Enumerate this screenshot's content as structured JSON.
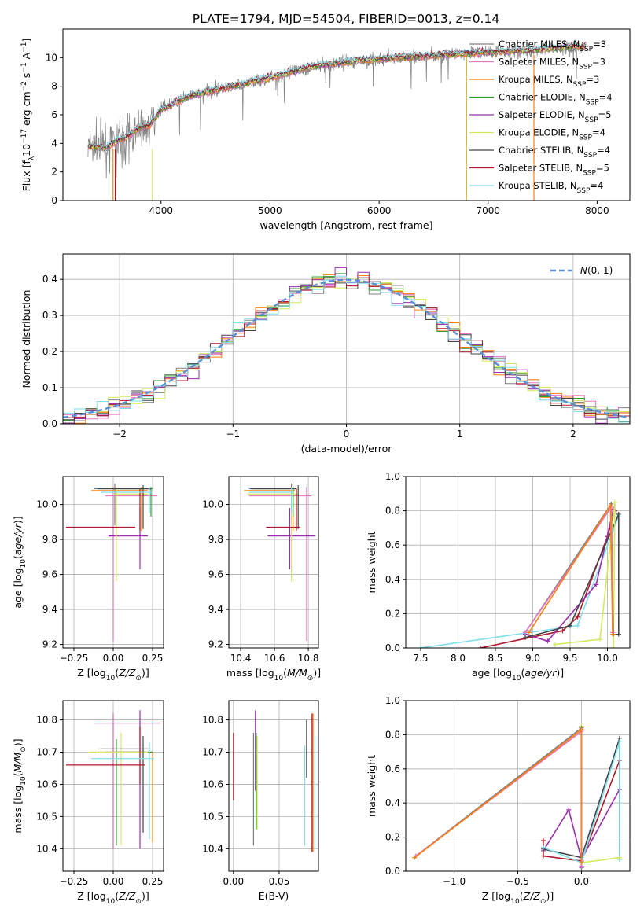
{
  "figure_title": "PLATE=1794, MJD=54504, FIBERID=0013, z=0.14",
  "colors": {
    "Chabrier MILES": "#808080",
    "Salpeter MILES": "#e377c2",
    "Kroupa MILES": "#ff7f0e",
    "Chabrier ELODIE": "#2ca02c",
    "Salpeter ELODIE": "#9b2fae",
    "Kroupa ELODIE": "#d6e95e",
    "Chabrier STELIB": "#444444",
    "Salpeter STELIB": "#b2182b",
    "Kroupa STELIB": "#80deea",
    "normal": "#5b8fd6"
  },
  "chart_data": [
    {
      "id": "spectrum",
      "type": "line",
      "xlabel": "wavelength [Angstrom, rest frame]",
      "ylabel": "Flux [f_λ 10^-17 erg cm^-2 s^-1 A^-1]",
      "xlim": [
        3100,
        8300
      ],
      "ylim": [
        0,
        12
      ],
      "xticks": [
        4000,
        5000,
        6000,
        7000,
        8000
      ],
      "yticks": [
        0,
        2,
        4,
        6,
        8,
        10
      ],
      "grid": false,
      "legend_position": "top-right",
      "data_anchors": {
        "x": [
          3330,
          3500,
          3600,
          3700,
          3800,
          3900,
          4000,
          4300,
          4600,
          5000,
          5400,
          5800,
          6200,
          6600,
          7000,
          7400,
          7800,
          8000
        ],
        "y": [
          3.8,
          3.7,
          4.2,
          4.5,
          5.1,
          5.3,
          6.4,
          7.4,
          7.9,
          8.6,
          9.4,
          9.8,
          10.0,
          10.2,
          10.4,
          10.5,
          10.8,
          10.8
        ]
      },
      "legend": [
        "Chabrier MILES, N_SSP=3",
        "Salpeter MILES, N_SSP=3",
        "Kroupa MILES, N_SSP=3",
        "Chabrier ELODIE, N_SSP=4",
        "Salpeter ELODIE, N_SSP=5",
        "Kroupa ELODIE, N_SSP=4",
        "Chabrier STELIB, N_SSP=4",
        "Salpeter STELIB, N_SSP=5",
        "Kroupa STELIB, N_SSP=4"
      ]
    },
    {
      "id": "residuals",
      "type": "line",
      "xlabel": "(data-model)/error",
      "ylabel": "Normed distribution",
      "xlim": [
        -2.5,
        2.5
      ],
      "ylim": [
        0,
        0.47
      ],
      "xticks": [
        -2,
        -1,
        0,
        1,
        2
      ],
      "yticks": [
        0.0,
        0.1,
        0.2,
        0.3,
        0.4
      ],
      "grid": true,
      "legend_position": "top-right",
      "normal_label": "N(0,1)"
    },
    {
      "id": "age_vs_Z",
      "type": "scatter",
      "xlabel": "Z [log10(Z/Z_sun)]",
      "ylabel": "age [log10(age/yr)]",
      "xlim": [
        -0.32,
        0.32
      ],
      "ylim": [
        9.18,
        10.16
      ],
      "xticks": [
        -0.25,
        0.0,
        0.25
      ],
      "yticks": [
        9.2,
        9.4,
        9.6,
        9.8,
        10.0
      ],
      "grid": true
    },
    {
      "id": "age_vs_mass",
      "type": "scatter",
      "xlabel": "mass [log10(M/M_sun)]",
      "ylabel": "",
      "xlim": [
        10.33,
        10.86
      ],
      "ylim": [
        9.18,
        10.16
      ],
      "xticks": [
        10.4,
        10.6,
        10.8
      ],
      "yticks": [
        9.2,
        9.4,
        9.6,
        9.8,
        10.0
      ],
      "grid": true
    },
    {
      "id": "massweight_vs_age",
      "type": "line",
      "xlabel": "age [log10(age/yr)]",
      "ylabel": "mass weight",
      "xlim": [
        7.3,
        10.3
      ],
      "ylim": [
        0,
        1
      ],
      "xticks": [
        7.5,
        8.0,
        8.5,
        9.0,
        9.5,
        10.0
      ],
      "yticks": [
        0.0,
        0.2,
        0.4,
        0.6,
        0.8,
        1.0
      ],
      "grid": true
    },
    {
      "id": "mass_vs_Z",
      "type": "scatter",
      "xlabel": "Z [log10(Z/Z_sun)]",
      "ylabel": "mass [log10(M/M_sun)]",
      "xlim": [
        -0.32,
        0.32
      ],
      "ylim": [
        10.33,
        10.86
      ],
      "xticks": [
        -0.25,
        0.0,
        0.25
      ],
      "yticks": [
        10.4,
        10.5,
        10.6,
        10.7,
        10.8
      ],
      "grid": true
    },
    {
      "id": "mass_vs_ebv",
      "type": "scatter",
      "xlabel": "E(B-V)",
      "ylabel": "",
      "xlim": [
        -0.005,
        0.093
      ],
      "ylim": [
        10.33,
        10.86
      ],
      "xticks": [
        0.0,
        0.05
      ],
      "yticks": [
        10.4,
        10.5,
        10.6,
        10.7,
        10.8
      ],
      "grid": true
    },
    {
      "id": "massweight_vs_Z",
      "type": "line",
      "xlabel": "Z [log10(Z/Z_sun)]",
      "ylabel": "mass weight",
      "xlim": [
        -1.38,
        0.38
      ],
      "ylim": [
        0,
        1
      ],
      "xticks": [
        -1.0,
        -0.5,
        0.0
      ],
      "yticks": [
        0.0,
        0.2,
        0.4,
        0.6,
        0.8,
        1.0
      ],
      "grid": true
    }
  ]
}
